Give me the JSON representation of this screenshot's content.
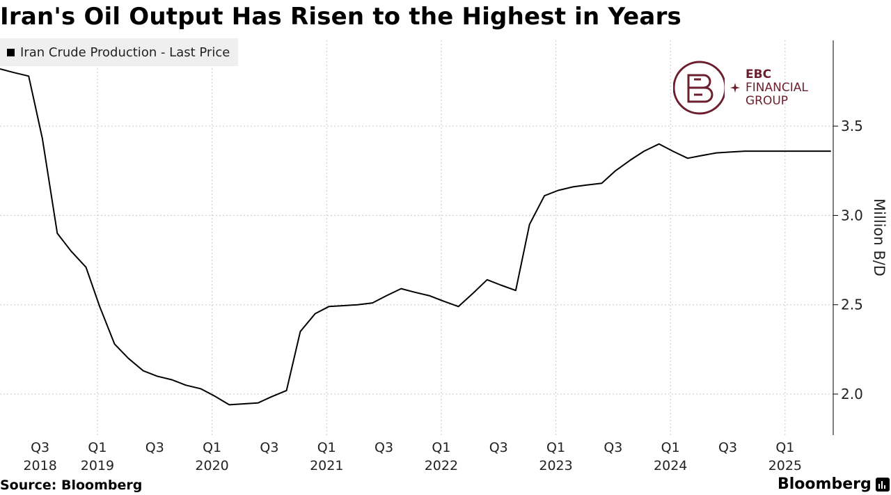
{
  "title": "Iran's Oil Output Has Risen to the Highest in Years",
  "legend_label": "Iran Crude Production - Last Price",
  "source": "Source: Bloomberg",
  "brand": "Bloomberg",
  "watermark": {
    "line1": "EBC",
    "line2": "FINANCIAL",
    "line3": "GROUP"
  },
  "colors": {
    "line": "#000000",
    "grid": "#c8c8c8",
    "watermark": "#6b1f2e"
  },
  "chart_data": {
    "type": "line",
    "title": "Iran's Oil Output Has Risen to the Highest in Years",
    "ylabel": "Million B/D",
    "ylim": [
      1.77,
      3.98
    ],
    "y_ticks": [
      2.0,
      2.5,
      3.0,
      3.5
    ],
    "y_tick_labels": [
      "2.0",
      "2.5",
      "3.0",
      "3.5"
    ],
    "y_axis_side": "right",
    "x_unit": "years (decimal)",
    "xlim": [
      2018.15,
      2025.42
    ],
    "x_ticks": [
      {
        "x": 2018.5,
        "label": "Q3",
        "year": "2018"
      },
      {
        "x": 2019.0,
        "label": "Q1",
        "year": "2019"
      },
      {
        "x": 2019.5,
        "label": "Q3",
        "year": ""
      },
      {
        "x": 2020.0,
        "label": "Q1",
        "year": "2020"
      },
      {
        "x": 2020.5,
        "label": "Q3",
        "year": ""
      },
      {
        "x": 2021.0,
        "label": "Q1",
        "year": "2021"
      },
      {
        "x": 2021.5,
        "label": "Q3",
        "year": ""
      },
      {
        "x": 2022.0,
        "label": "Q1",
        "year": "2022"
      },
      {
        "x": 2022.5,
        "label": "Q3",
        "year": ""
      },
      {
        "x": 2023.0,
        "label": "Q1",
        "year": "2023"
      },
      {
        "x": 2023.5,
        "label": "Q3",
        "year": ""
      },
      {
        "x": 2024.0,
        "label": "Q1",
        "year": "2024"
      },
      {
        "x": 2024.5,
        "label": "Q3",
        "year": ""
      },
      {
        "x": 2025.0,
        "label": "Q1",
        "year": "2025"
      }
    ],
    "grid": true,
    "legend_position": "top-left",
    "series": [
      {
        "name": "Iran Crude Production - Last Price",
        "x": [
          2018.15,
          2018.27,
          2018.4,
          2018.52,
          2018.65,
          2018.77,
          2018.9,
          2019.02,
          2019.15,
          2019.27,
          2019.4,
          2019.52,
          2019.65,
          2019.77,
          2019.9,
          2020.02,
          2020.15,
          2020.27,
          2020.4,
          2020.52,
          2020.65,
          2020.77,
          2020.9,
          2021.02,
          2021.15,
          2021.27,
          2021.4,
          2021.52,
          2021.65,
          2021.77,
          2021.9,
          2022.02,
          2022.15,
          2022.27,
          2022.4,
          2022.52,
          2022.65,
          2022.77,
          2022.9,
          2023.02,
          2023.15,
          2023.27,
          2023.4,
          2023.52,
          2023.65,
          2023.77,
          2023.9,
          2024.02,
          2024.15,
          2024.27,
          2024.4,
          2024.52,
          2024.65,
          2024.77,
          2024.9,
          2025.02,
          2025.15,
          2025.27,
          2025.4
        ],
        "values": [
          3.82,
          3.8,
          3.78,
          3.43,
          2.9,
          2.8,
          2.71,
          2.49,
          2.28,
          2.2,
          2.13,
          2.1,
          2.08,
          2.05,
          2.03,
          1.99,
          1.94,
          1.945,
          1.95,
          1.985,
          2.02,
          2.35,
          2.45,
          2.49,
          2.495,
          2.5,
          2.51,
          2.55,
          2.59,
          2.57,
          2.55,
          2.52,
          2.49,
          2.56,
          2.64,
          2.61,
          2.58,
          2.95,
          3.11,
          3.14,
          3.16,
          3.17,
          3.18,
          3.25,
          3.31,
          3.36,
          3.4,
          3.36,
          3.32,
          3.335,
          3.35,
          3.355,
          3.36,
          3.36,
          3.36,
          3.36,
          3.36,
          3.36,
          3.36
        ]
      }
    ]
  }
}
